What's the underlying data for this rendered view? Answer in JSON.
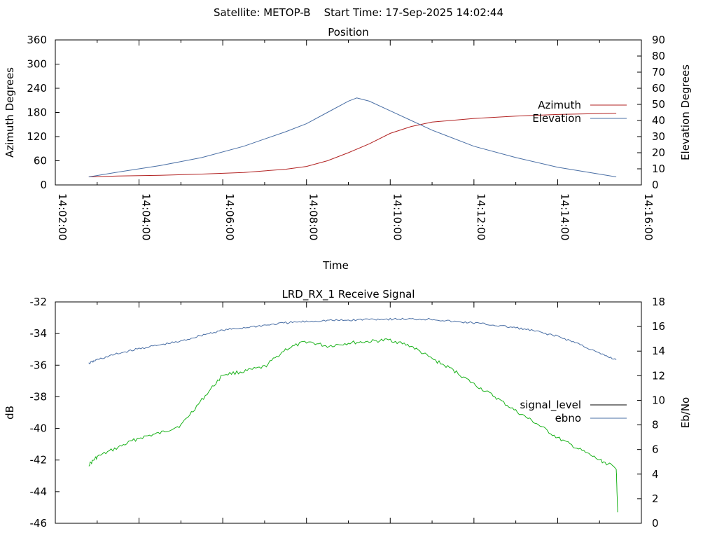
{
  "header": {
    "title": "Satellite: METOP-B    Start Time: 17-Sep-2025 14:02:44"
  },
  "chart_data": [
    {
      "type": "line",
      "title": "Position",
      "xlabel": "Time",
      "ylabel": "Azimuth Degrees",
      "y2label": "Elevation Degrees",
      "x_ticks": [
        "14:02:00",
        "14:04:00",
        "14:06:00",
        "14:08:00",
        "14:10:00",
        "14:12:00",
        "14:14:00",
        "14:16:00"
      ],
      "xlim": [
        "14:02:00",
        "14:16:00"
      ],
      "ylim": [
        0,
        360
      ],
      "y_ticks": [
        0,
        60,
        120,
        180,
        240,
        300,
        360
      ],
      "y2lim": [
        0,
        90
      ],
      "y2_ticks": [
        0,
        10,
        20,
        30,
        40,
        50,
        60,
        70,
        80,
        90
      ],
      "legend_position": "right",
      "grid": false,
      "series": [
        {
          "name": "Azimuth",
          "axis": "y",
          "color": "#b22222",
          "x": [
            "14:02:48",
            "14:03:30",
            "14:04:30",
            "14:05:30",
            "14:06:30",
            "14:07:30",
            "14:08:00",
            "14:08:30",
            "14:09:00",
            "14:09:30",
            "14:10:00",
            "14:10:30",
            "14:11:00",
            "14:12:00",
            "14:13:00",
            "14:14:00",
            "14:15:24"
          ],
          "values": [
            20,
            22,
            24,
            27,
            31,
            39,
            46,
            60,
            80,
            102,
            128,
            145,
            156,
            165,
            171,
            175,
            178
          ]
        },
        {
          "name": "Elevation",
          "axis": "y2",
          "color": "#4a6fa5",
          "x": [
            "14:02:48",
            "14:03:30",
            "14:04:30",
            "14:05:30",
            "14:06:30",
            "14:07:30",
            "14:08:00",
            "14:08:30",
            "14:09:00",
            "14:09:12",
            "14:09:30",
            "14:10:00",
            "14:10:30",
            "14:11:00",
            "14:12:00",
            "14:13:00",
            "14:14:00",
            "14:15:24"
          ],
          "values": [
            5,
            8,
            12,
            17,
            24,
            33,
            38,
            45,
            52,
            54,
            52,
            46,
            40,
            34,
            24,
            17,
            11,
            5
          ]
        }
      ]
    },
    {
      "type": "line",
      "title": "LRD_RX_1 Receive Signal",
      "ylabel": "dB",
      "y2label": "Eb/No",
      "ylim": [
        -46,
        -32
      ],
      "y_ticks": [
        -46,
        -44,
        -42,
        -40,
        -38,
        -36,
        -34,
        -32
      ],
      "y2lim": [
        0,
        18
      ],
      "y2_ticks": [
        0,
        2,
        4,
        6,
        8,
        10,
        12,
        14,
        16,
        18
      ],
      "xlim": [
        "14:02:00",
        "14:16:00"
      ],
      "legend_position": "right",
      "grid": false,
      "series": [
        {
          "name": "signal_level",
          "axis": "y",
          "color": "#1ab21a",
          "x": [
            "14:02:48",
            "14:03:00",
            "14:03:30",
            "14:04:00",
            "14:04:30",
            "14:05:00",
            "14:05:30",
            "14:06:00",
            "14:06:30",
            "14:07:00",
            "14:07:30",
            "14:08:00",
            "14:08:30",
            "14:09:00",
            "14:09:30",
            "14:10:00",
            "14:10:30",
            "14:11:00",
            "14:11:30",
            "14:12:00",
            "14:12:30",
            "14:13:00",
            "14:13:30",
            "14:14:00",
            "14:14:30",
            "14:15:00",
            "14:15:24",
            "14:15:26"
          ],
          "values": [
            -42.3,
            -41.8,
            -41.2,
            -40.6,
            -40.3,
            -39.8,
            -38.2,
            -36.6,
            -36.4,
            -36.1,
            -35.0,
            -34.5,
            -34.8,
            -34.6,
            -34.5,
            -34.4,
            -34.8,
            -35.6,
            -36.3,
            -37.2,
            -38.0,
            -38.9,
            -39.7,
            -40.6,
            -41.3,
            -42.0,
            -42.5,
            -45.3
          ]
        },
        {
          "name": "ebno",
          "axis": "y2",
          "color": "#4a6fa5",
          "x": [
            "14:02:48",
            "14:03:00",
            "14:03:30",
            "14:04:00",
            "14:04:30",
            "14:05:00",
            "14:05:30",
            "14:06:00",
            "14:06:30",
            "14:07:00",
            "14:07:30",
            "14:08:00",
            "14:08:30",
            "14:09:00",
            "14:09:30",
            "14:10:00",
            "14:10:30",
            "14:11:00",
            "14:11:30",
            "14:12:00",
            "14:12:30",
            "14:13:00",
            "14:13:30",
            "14:14:00",
            "14:14:30",
            "14:15:00",
            "14:15:24"
          ],
          "values": [
            13.0,
            13.3,
            13.8,
            14.2,
            14.5,
            14.8,
            15.3,
            15.7,
            15.9,
            16.1,
            16.3,
            16.4,
            16.5,
            16.5,
            16.6,
            16.6,
            16.6,
            16.6,
            16.4,
            16.3,
            16.1,
            15.9,
            15.6,
            15.2,
            14.6,
            13.8,
            13.3
          ]
        }
      ]
    }
  ]
}
